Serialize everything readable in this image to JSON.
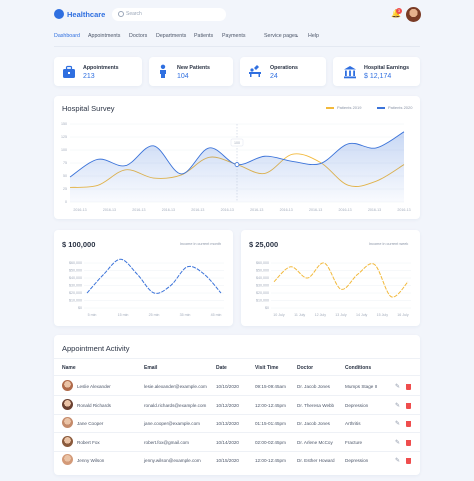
{
  "header": {
    "app_name": "Healthcare",
    "search_placeholder": "Search",
    "notification_count": "3"
  },
  "nav": [
    {
      "label": "Dashboard",
      "active": true
    },
    {
      "label": "Appointments"
    },
    {
      "label": "Doctors"
    },
    {
      "label": "Departments"
    },
    {
      "label": "Patients"
    },
    {
      "label": "Payments"
    },
    {
      "label": "Service pages"
    },
    {
      "label": "Help"
    }
  ],
  "stats": [
    {
      "label": "Appointments",
      "value": "213",
      "icon": "briefcase-icon"
    },
    {
      "label": "New Patients",
      "value": "104",
      "icon": "person-icon"
    },
    {
      "label": "Operations",
      "value": "24",
      "icon": "operation-icon"
    },
    {
      "label": "Hospital Earnings",
      "value": "$ 12,174",
      "icon": "bank-icon"
    }
  ],
  "survey": {
    "title": "Hospital Survey",
    "legend": [
      {
        "name": "Patients 2019",
        "color": "#f2b93b"
      },
      {
        "name": "Patients 2020",
        "color": "#3b73d9"
      }
    ],
    "tooltip": "100"
  },
  "chart_data": [
    {
      "type": "area",
      "series": [
        {
          "name": "Patients 2019",
          "values": [
            28,
            32,
            62,
            46,
            52,
            86,
            72,
            55,
            92,
            76,
            32,
            40,
            72
          ]
        },
        {
          "name": "Patients 2020",
          "values": [
            48,
            82,
            70,
            108,
            54,
            104,
            72,
            88,
            78,
            74,
            112,
            104,
            135
          ]
        }
      ],
      "ylim": [
        0,
        150
      ],
      "yticks": [
        "0",
        "25",
        "50",
        "75",
        "100",
        "125",
        "150"
      ],
      "xticks": [
        "2016-13",
        "2016-13",
        "2016-13",
        "2016-13",
        "2016-13",
        "2016-13",
        "2016-13",
        "2016-13",
        "2016-13",
        "2016-13",
        "2016-13",
        "2016-13"
      ]
    },
    {
      "type": "line",
      "title": "$ 100,000",
      "subtitle": "Income in current month",
      "series": [
        {
          "name": "",
          "values": [
            20,
            45,
            65,
            45,
            20,
            30,
            55,
            45,
            20
          ]
        }
      ],
      "yticks": [
        "$0",
        "$10,000",
        "$20,000",
        "$30,000",
        "$40,000",
        "$50,000",
        "$60,000"
      ],
      "xticks": [
        "5 min",
        "15 min",
        "25 min",
        "35 min",
        "45 min"
      ],
      "color": "#3b73d9"
    },
    {
      "type": "line",
      "title": "$ 25,000",
      "subtitle": "Income in current week",
      "series": [
        {
          "name": "",
          "values": [
            35,
            55,
            40,
            60,
            25,
            45,
            58,
            15,
            35
          ]
        }
      ],
      "yticks": [
        "$0",
        "$10,000",
        "$20,000",
        "$30,000",
        "$40,000",
        "$50,000",
        "$60,000"
      ],
      "xticks": [
        "10 July",
        "11 July",
        "12 July",
        "13 July",
        "14 July",
        "15 July",
        "16 July"
      ],
      "color": "#f2b93b"
    }
  ],
  "appointments": {
    "title": "Appointment Activity",
    "columns": [
      "Name",
      "Email",
      "Date",
      "Visit Time",
      "Doctor",
      "Conditions"
    ],
    "rows": [
      {
        "name": "Leslie Alexander",
        "email": "lesie.alexander@example.com",
        "date": "10/10/2020",
        "time": "09:15-09:45am",
        "doctor": "Dr. Jacob Jones",
        "condition": "Mumps Stage II"
      },
      {
        "name": "Ronald Richards",
        "email": "ronald.richards@example.com",
        "date": "10/12/2020",
        "time": "12:00-12:45pm",
        "doctor": "Dr. Theresa Webb",
        "condition": "Depression"
      },
      {
        "name": "Jane Cooper",
        "email": "jane.cooper@example.com",
        "date": "10/13/2020",
        "time": "01:15-01:45pm",
        "doctor": "Dr. Jacob Jones",
        "condition": "Arthritis"
      },
      {
        "name": "Robert Fox",
        "email": "robert.fox@gmail.com",
        "date": "10/14/2020",
        "time": "02:00-02:45pm",
        "doctor": "Dr. Arlene McCoy",
        "condition": "Fracture"
      },
      {
        "name": "Jenny Wilson",
        "email": "jenny.wilson@example.com",
        "date": "10/15/2020",
        "time": "12:00-12:45pm",
        "doctor": "Dr. Esther Howard",
        "condition": "Depression"
      }
    ]
  }
}
